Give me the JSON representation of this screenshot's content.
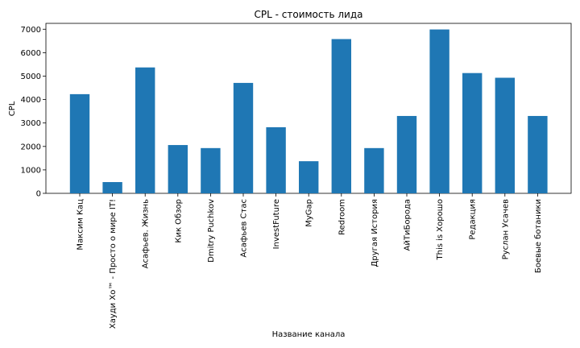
{
  "chart_data": {
    "type": "bar",
    "title": "CPL - стоимость лида",
    "xlabel": "Название канала",
    "ylabel": "CPL",
    "ylim": [
      0,
      7250
    ],
    "yticks": [
      0,
      1000,
      2000,
      3000,
      4000,
      5000,
      6000,
      7000
    ],
    "categories": [
      "Максим Кац",
      "Хауди Хо™ - Просто о мире IT!",
      "Асафьев. Жизнь",
      "Кик Обзор",
      "Dmitry Puchkov",
      "Асафьев Стас",
      "InvestFuture",
      "MyGap",
      "Redroom",
      "Другая История",
      "АйТиБорода",
      "This is Хорошо",
      "Редакция",
      "Руслан Усачев",
      "Боевые ботаники"
    ],
    "values": [
      4230,
      480,
      5370,
      2060,
      1930,
      4710,
      2820,
      1370,
      6580,
      1930,
      3300,
      6990,
      5130,
      4930,
      3300
    ],
    "bar_color": "#1f77b4",
    "grid": false,
    "legend": "none"
  }
}
